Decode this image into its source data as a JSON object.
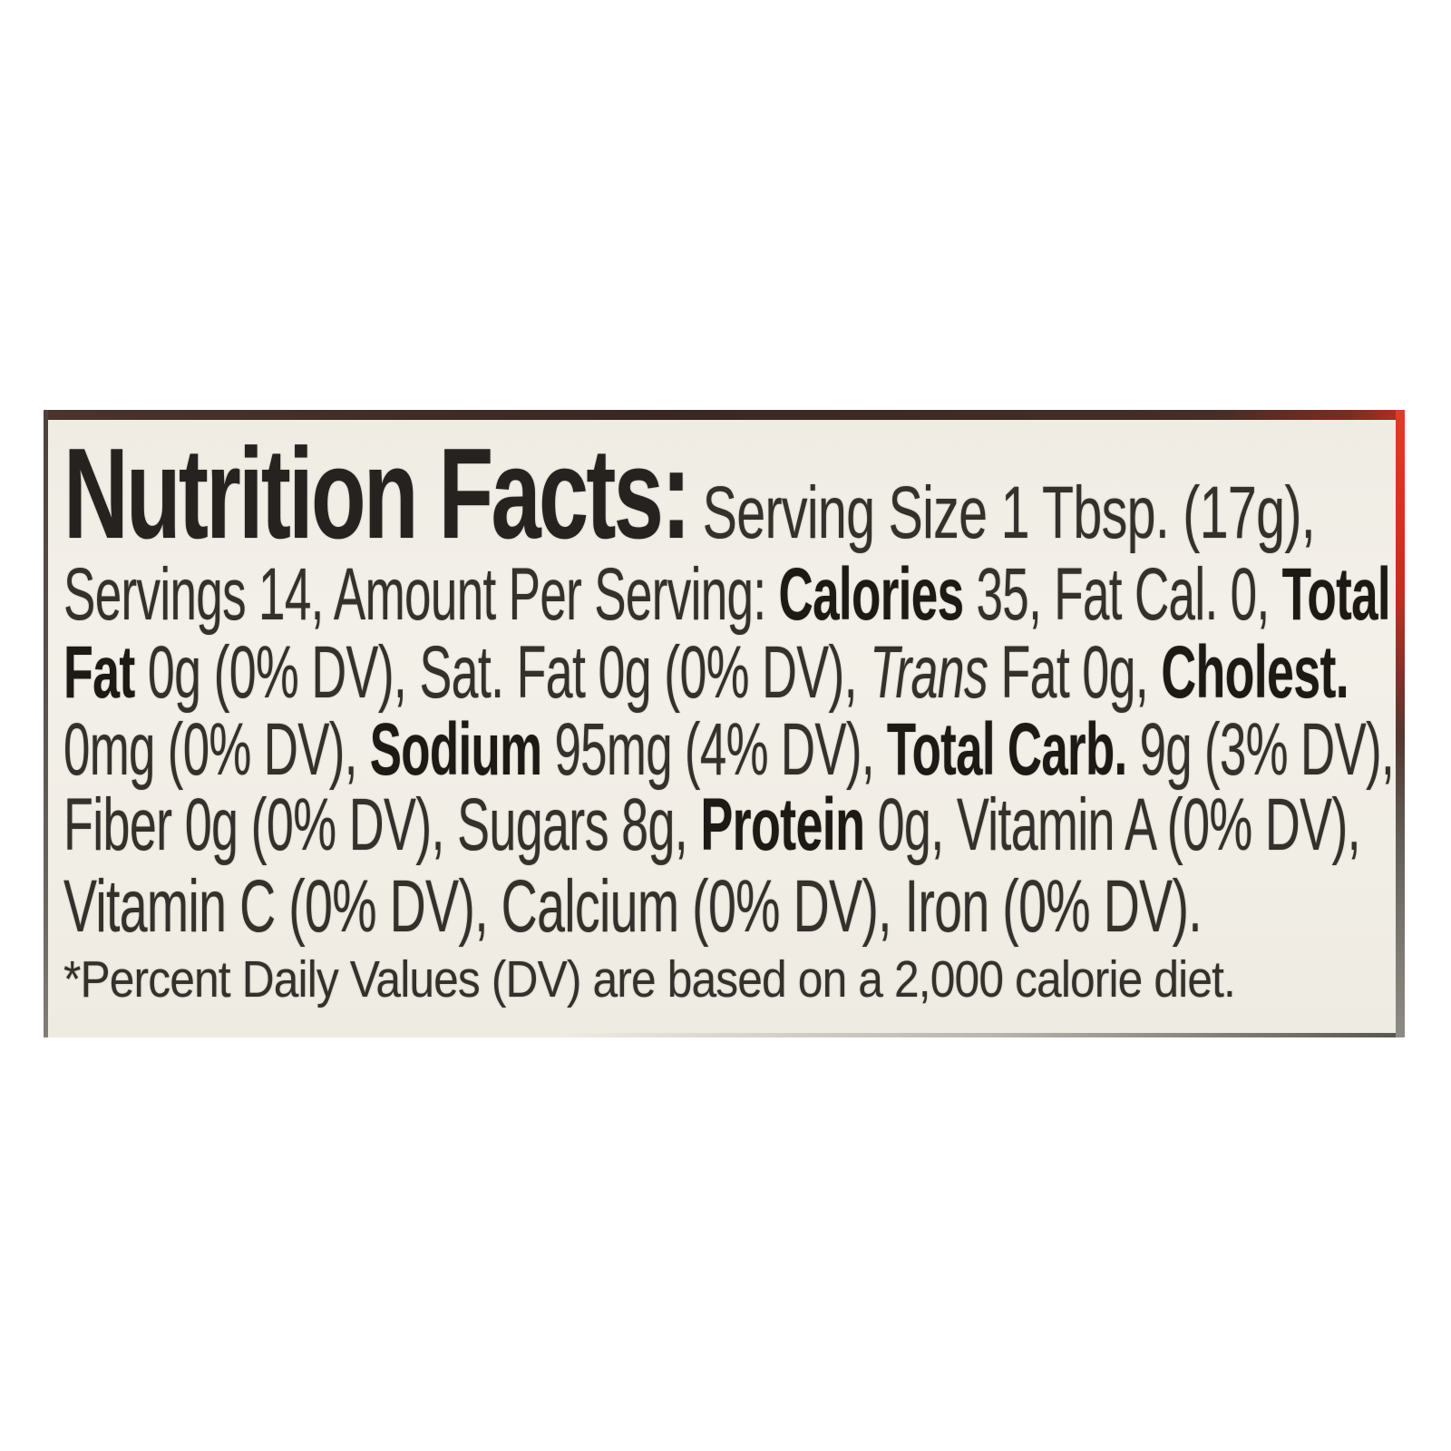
{
  "label": {
    "title": "Nutrition Facts:",
    "nutrition_facts": {
      "serving_size": "1 Tbsp. (17g)",
      "servings": "14",
      "calories": "35",
      "fat_cal": "0",
      "total_fat": "0g (0% DV)",
      "sat_fat": "0g (0% DV)",
      "trans_fat": "0g",
      "cholesterol": "0mg (0% DV)",
      "sodium": "95mg (4% DV)",
      "total_carb": "9g (3% DV)",
      "fiber": "0g (0% DV)",
      "sugars": "8g",
      "protein": "0g",
      "vitamin_a": "(0% DV)",
      "vitamin_c": "(0% DV)",
      "calcium": "(0% DV)",
      "iron": "(0% DV)",
      "footnote": "*Percent Daily Values (DV) are based on a 2,000 calorie diet."
    },
    "lines": [
      {
        "segments": [
          {
            "text": "Nutrition Facts:",
            "style": "heading"
          },
          {
            "text": " Serving Size 1 Tbsp. (17g),",
            "style": "regular"
          }
        ]
      },
      {
        "segments": [
          {
            "text": "Servings 14, Amount Per Serving: ",
            "style": "regular"
          },
          {
            "text": "Calories",
            "style": "bold"
          },
          {
            "text": " 35, Fat Cal. 0, ",
            "style": "regular"
          },
          {
            "text": "Total",
            "style": "bold"
          }
        ]
      },
      {
        "segments": [
          {
            "text": "Fat",
            "style": "bold"
          },
          {
            "text": " 0g (0% DV), Sat. Fat 0g (0% DV), ",
            "style": "regular"
          },
          {
            "text": "Trans",
            "style": "italic"
          },
          {
            "text": " Fat 0g, ",
            "style": "regular"
          },
          {
            "text": "Cholest.",
            "style": "bold"
          }
        ]
      },
      {
        "segments": [
          {
            "text": "0mg (0% DV), ",
            "style": "regular"
          },
          {
            "text": "Sodium",
            "style": "bold"
          },
          {
            "text": " 95mg (4% DV), ",
            "style": "regular"
          },
          {
            "text": "Total Carb.",
            "style": "bold"
          },
          {
            "text": " 9g (3% DV),",
            "style": "regular"
          }
        ]
      },
      {
        "segments": [
          {
            "text": "Fiber 0g (0% DV), Sugars 8g, ",
            "style": "regular"
          },
          {
            "text": "Protein",
            "style": "bold"
          },
          {
            "text": " 0g, Vitamin A (0% DV),",
            "style": "regular"
          }
        ]
      },
      {
        "segments": [
          {
            "text": "Vitamin C (0% DV), Calcium (0% DV), Iron (0% DV).",
            "style": "regular"
          }
        ]
      },
      {
        "segments": [
          {
            "text": "*Percent Daily Values (DV) are based on a 2,000 calorie diet.",
            "style": "note"
          }
        ]
      }
    ]
  },
  "colors": {
    "page_background": "#ffffff",
    "label_background": "#f1eee6",
    "text": "#34302b",
    "bold_text": "#1d1915",
    "box_edge_red": "#d73022",
    "top_edge_dark": "#3a2723"
  }
}
